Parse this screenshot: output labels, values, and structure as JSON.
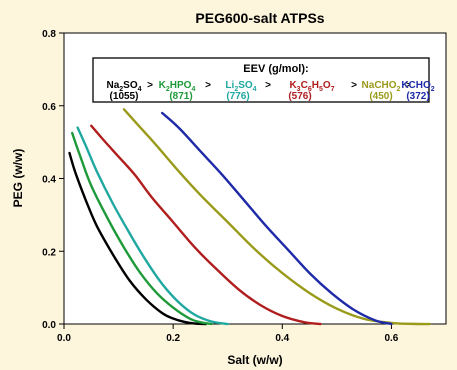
{
  "chart_data": {
    "type": "line",
    "title": "PEG600-salt ATPSs",
    "xlabel": "Salt (w/w)",
    "ylabel": "PEG (w/w)",
    "xlim": [
      0,
      0.7
    ],
    "ylim": [
      0,
      0.8
    ],
    "x_ticks": [
      "0.0",
      "0.2",
      "0.4",
      "0.6"
    ],
    "y_ticks": [
      "0.0",
      "0.2",
      "0.4",
      "0.6",
      "0.8"
    ],
    "grid": false,
    "legend_header": "EEV (g/mol):",
    "separator": ">",
    "series": [
      {
        "name_parts": [
          [
            "Na",
            false
          ],
          [
            "2",
            true
          ],
          [
            "SO",
            false
          ],
          [
            "4",
            true
          ]
        ],
        "eev": "(1055)",
        "color": "#000000",
        "x": [
          0.01,
          0.02,
          0.04,
          0.06,
          0.09,
          0.12,
          0.15,
          0.18,
          0.2,
          0.22,
          0.24,
          0.26
        ],
        "y": [
          0.47,
          0.42,
          0.34,
          0.27,
          0.19,
          0.12,
          0.068,
          0.03,
          0.015,
          0.006,
          0.001,
          0.0
        ]
      },
      {
        "name_parts": [
          [
            "K",
            false
          ],
          [
            "2",
            true
          ],
          [
            "HPO",
            false
          ],
          [
            "4",
            true
          ]
        ],
        "eev": "(871)",
        "color": "#1f9a3a",
        "x": [
          0.015,
          0.03,
          0.05,
          0.08,
          0.11,
          0.14,
          0.17,
          0.2,
          0.23,
          0.25,
          0.27
        ],
        "y": [
          0.525,
          0.46,
          0.38,
          0.29,
          0.21,
          0.14,
          0.085,
          0.045,
          0.015,
          0.005,
          0.0
        ]
      },
      {
        "name_parts": [
          [
            "Li",
            false
          ],
          [
            "2",
            true
          ],
          [
            "SO",
            false
          ],
          [
            "4",
            true
          ]
        ],
        "eev": "(776)",
        "color": "#1fa8a0",
        "x": [
          0.025,
          0.04,
          0.06,
          0.09,
          0.12,
          0.15,
          0.18,
          0.21,
          0.24,
          0.27,
          0.3
        ],
        "y": [
          0.54,
          0.49,
          0.42,
          0.33,
          0.25,
          0.175,
          0.11,
          0.06,
          0.025,
          0.007,
          0.0
        ]
      },
      {
        "name_parts": [
          [
            "K",
            false
          ],
          [
            "3",
            true
          ],
          [
            "C",
            false
          ],
          [
            "6",
            true
          ],
          [
            "H",
            false
          ],
          [
            "5",
            true
          ],
          [
            "O",
            false
          ],
          [
            "7",
            true
          ]
        ],
        "eev": "(576)",
        "color": "#b01e1e",
        "x": [
          0.05,
          0.07,
          0.1,
          0.13,
          0.16,
          0.2,
          0.24,
          0.28,
          0.32,
          0.36,
          0.4,
          0.44,
          0.47
        ],
        "y": [
          0.545,
          0.51,
          0.46,
          0.41,
          0.35,
          0.28,
          0.21,
          0.15,
          0.095,
          0.052,
          0.022,
          0.005,
          0.0
        ]
      },
      {
        "name_parts": [
          [
            "NaCHO",
            false
          ],
          [
            "2",
            true
          ]
        ],
        "eev": "(450)",
        "color": "#9a9a1a",
        "x": [
          0.11,
          0.14,
          0.17,
          0.21,
          0.25,
          0.3,
          0.35,
          0.4,
          0.45,
          0.5,
          0.55,
          0.6,
          0.65,
          0.67
        ],
        "y": [
          0.59,
          0.54,
          0.49,
          0.42,
          0.355,
          0.28,
          0.205,
          0.14,
          0.085,
          0.042,
          0.014,
          0.003,
          0.0,
          0.0
        ]
      },
      {
        "name_parts": [
          [
            "KCHO",
            false
          ],
          [
            "2",
            true
          ]
        ],
        "eev": "(372)",
        "color": "#1e2aa8",
        "x": [
          0.18,
          0.21,
          0.25,
          0.29,
          0.33,
          0.37,
          0.41,
          0.45,
          0.49,
          0.53,
          0.57,
          0.6
        ],
        "y": [
          0.58,
          0.54,
          0.475,
          0.41,
          0.34,
          0.27,
          0.205,
          0.14,
          0.085,
          0.04,
          0.01,
          0.0
        ]
      }
    ]
  }
}
